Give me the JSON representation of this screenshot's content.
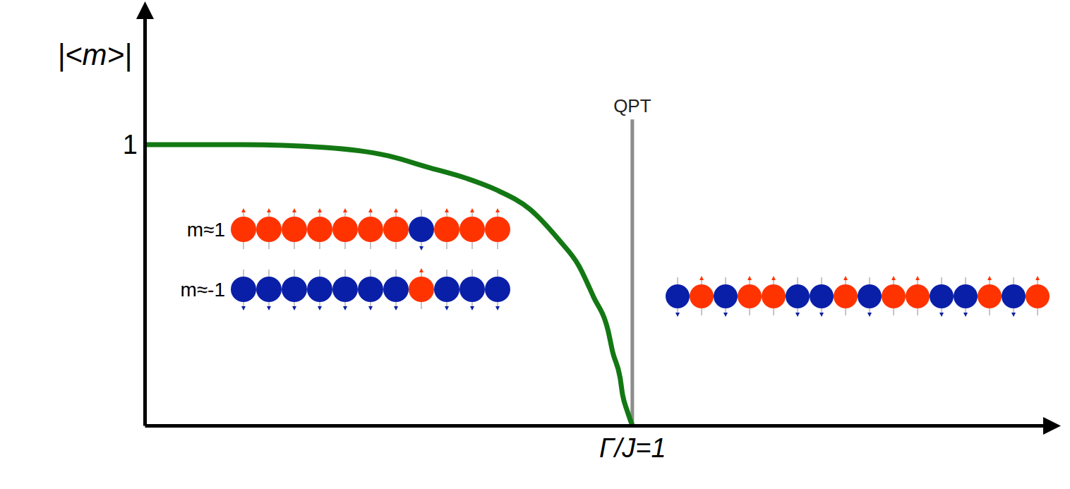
{
  "chart_data": {
    "type": "line",
    "y_label": "|<m>|",
    "x": [
      0,
      0.2,
      0.37,
      0.5,
      0.58,
      0.66,
      0.72,
      0.79,
      0.85,
      0.89,
      0.92,
      0.95,
      0.96,
      0.975,
      0.98,
      0.99,
      1
    ],
    "values": [
      1,
      1.0,
      0.99,
      0.96,
      0.92,
      0.88,
      0.84,
      0.77,
      0.66,
      0.57,
      0.46,
      0.34,
      0.26,
      0.17,
      0.11,
      0.05,
      0
    ],
    "color": "#137813",
    "xlim": [
      0,
      1.86
    ],
    "ylim": [
      0,
      1.48
    ],
    "xticks": [
      {
        "value": 1,
        "label": "Γ/J=1"
      }
    ],
    "yticks": [
      1
    ],
    "grid": false,
    "annotations": [
      {
        "text": "QPT",
        "x": 1,
        "y": 1.09
      }
    ],
    "spin_chains": [
      {
        "label": "m≈1",
        "spins": [
          1,
          1,
          1,
          1,
          1,
          1,
          1,
          -1,
          1,
          1,
          1
        ]
      },
      {
        "label": "m≈-1",
        "spins": [
          -1,
          -1,
          -1,
          -1,
          -1,
          -1,
          -1,
          1,
          -1,
          -1,
          -1
        ]
      },
      {
        "spins": [
          -1,
          1,
          -1,
          1,
          1,
          -1,
          -1,
          1,
          -1,
          1,
          1,
          -1,
          -1,
          1,
          -1,
          1
        ]
      }
    ]
  }
}
